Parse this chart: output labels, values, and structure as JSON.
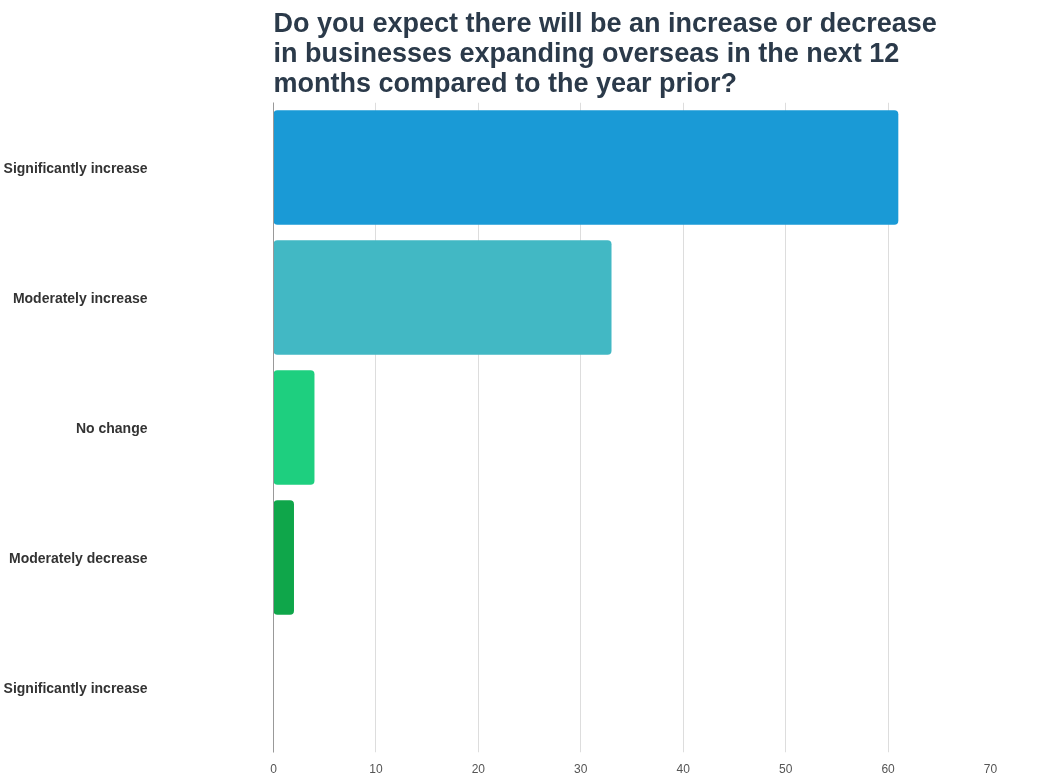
{
  "chart_data": {
    "type": "bar",
    "orientation": "horizontal",
    "title": "Do you expect there will be an increase or decrease in businesses expanding overseas in the next 12 months compared to the year prior?",
    "categories": [
      "Significantly increase",
      "Moderately increase",
      "No change",
      "Moderately decrease",
      "Significantly increase"
    ],
    "values": [
      61,
      33,
      4,
      2,
      0
    ],
    "colors": [
      "#1a9ad6",
      "#42b8c4",
      "#1ecf7f",
      "#0fa64a",
      "#0a8a3a"
    ],
    "xlim": [
      0,
      70
    ],
    "xticks": [
      0,
      10,
      20,
      30,
      40,
      50,
      60,
      70
    ],
    "grid": "x"
  }
}
